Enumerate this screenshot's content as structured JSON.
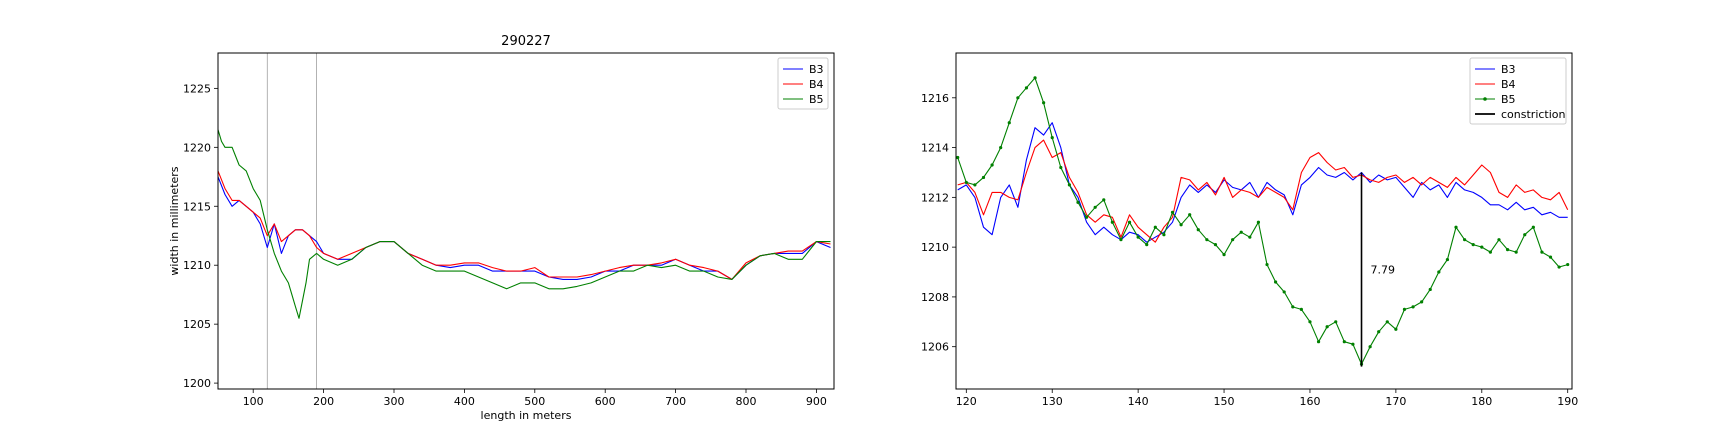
{
  "chart_data": [
    {
      "type": "line",
      "title": "290227",
      "xlabel": "length in meters",
      "ylabel": "width in millimeters",
      "xlim": [
        50,
        925
      ],
      "ylim": [
        1199.5,
        1228
      ],
      "xticks": [
        100,
        200,
        300,
        400,
        500,
        600,
        700,
        800,
        900
      ],
      "yticks": [
        1200,
        1205,
        1210,
        1215,
        1220,
        1225
      ],
      "grid": false,
      "legend_position": "top-right",
      "vlines": [
        120,
        190
      ],
      "series": [
        {
          "name": "B3",
          "color": "#0000ff",
          "x": [
            50,
            60,
            70,
            80,
            90,
            100,
            110,
            120,
            130,
            140,
            150,
            160,
            170,
            180,
            190,
            200,
            220,
            240,
            260,
            280,
            300,
            320,
            340,
            360,
            380,
            400,
            420,
            440,
            460,
            480,
            500,
            520,
            540,
            560,
            580,
            600,
            620,
            640,
            660,
            680,
            700,
            720,
            740,
            760,
            780,
            800,
            820,
            840,
            860,
            880,
            900,
            920
          ],
          "y": [
            1217.5,
            1216.0,
            1215.0,
            1215.5,
            1215.0,
            1214.5,
            1213.5,
            1211.5,
            1213.5,
            1211.0,
            1212.5,
            1213.0,
            1213.0,
            1212.5,
            1212.0,
            1211.0,
            1210.5,
            1210.5,
            1211.5,
            1212.0,
            1212.0,
            1211.0,
            1210.5,
            1210.0,
            1209.8,
            1210.0,
            1210.0,
            1209.5,
            1209.5,
            1209.5,
            1209.5,
            1209.0,
            1208.8,
            1208.8,
            1209.0,
            1209.5,
            1209.5,
            1210.0,
            1210.0,
            1210.0,
            1210.5,
            1210.0,
            1209.5,
            1209.5,
            1208.8,
            1210.0,
            1210.8,
            1211.0,
            1211.0,
            1211.0,
            1212.0,
            1211.5
          ]
        },
        {
          "name": "B4",
          "color": "#ff0000",
          "x": [
            50,
            60,
            70,
            80,
            90,
            100,
            110,
            120,
            130,
            140,
            150,
            160,
            170,
            180,
            190,
            200,
            220,
            240,
            260,
            280,
            300,
            320,
            340,
            360,
            380,
            400,
            420,
            440,
            460,
            480,
            500,
            520,
            540,
            560,
            580,
            600,
            620,
            640,
            660,
            680,
            700,
            720,
            740,
            760,
            780,
            800,
            820,
            840,
            860,
            880,
            900,
            920
          ],
          "y": [
            1218.0,
            1216.5,
            1215.5,
            1215.5,
            1215.0,
            1214.5,
            1214.0,
            1212.5,
            1213.5,
            1212.0,
            1212.5,
            1213.0,
            1213.0,
            1212.5,
            1211.5,
            1211.0,
            1210.5,
            1211.0,
            1211.5,
            1212.0,
            1212.0,
            1211.0,
            1210.5,
            1210.0,
            1210.0,
            1210.2,
            1210.2,
            1209.8,
            1209.5,
            1209.5,
            1209.8,
            1209.0,
            1209.0,
            1209.0,
            1209.2,
            1209.5,
            1209.8,
            1210.0,
            1210.0,
            1210.2,
            1210.5,
            1210.0,
            1209.8,
            1209.5,
            1208.8,
            1210.2,
            1210.8,
            1211.0,
            1211.2,
            1211.2,
            1212.0,
            1211.8
          ]
        },
        {
          "name": "B5",
          "color": "#008000",
          "x": [
            50,
            55,
            60,
            70,
            80,
            90,
            100,
            110,
            120,
            130,
            140,
            150,
            155,
            160,
            165,
            170,
            175,
            180,
            190,
            200,
            220,
            240,
            260,
            280,
            300,
            320,
            340,
            360,
            380,
            400,
            420,
            440,
            460,
            480,
            500,
            520,
            540,
            560,
            580,
            600,
            620,
            640,
            660,
            680,
            700,
            720,
            740,
            760,
            780,
            800,
            820,
            840,
            860,
            880,
            900,
            920
          ],
          "y": [
            1221.5,
            1220.5,
            1220.0,
            1220.0,
            1218.5,
            1218.0,
            1216.5,
            1215.5,
            1213.0,
            1211.0,
            1209.5,
            1208.5,
            1207.5,
            1206.5,
            1205.5,
            1207.0,
            1208.5,
            1210.5,
            1211.0,
            1210.5,
            1210.0,
            1210.5,
            1211.5,
            1212.0,
            1212.0,
            1211.0,
            1210.0,
            1209.5,
            1209.5,
            1209.5,
            1209.0,
            1208.5,
            1208.0,
            1208.5,
            1208.5,
            1208.0,
            1208.0,
            1208.2,
            1208.5,
            1209.0,
            1209.5,
            1209.5,
            1210.0,
            1209.8,
            1210.0,
            1209.5,
            1209.5,
            1209.0,
            1208.8,
            1210.0,
            1210.8,
            1211.0,
            1210.5,
            1210.5,
            1212.0,
            1212.0
          ]
        }
      ]
    },
    {
      "type": "line",
      "title": "",
      "xlabel": "",
      "ylabel": "",
      "xlim": [
        118.8,
        190.5
      ],
      "ylim": [
        1204.3,
        1217.8
      ],
      "xticks": [
        120,
        130,
        140,
        150,
        160,
        170,
        180,
        190
      ],
      "yticks": [
        1206,
        1208,
        1210,
        1212,
        1214,
        1216
      ],
      "grid": false,
      "legend_position": "top-right",
      "annotation": "7.79",
      "constriction": {
        "x": 166,
        "y1": 1205.2,
        "y2": 1213.0
      },
      "series": [
        {
          "name": "B3",
          "color": "#0000ff",
          "x": [
            119,
            120,
            121,
            122,
            123,
            124,
            125,
            126,
            127,
            128,
            129,
            130,
            131,
            132,
            133,
            134,
            135,
            136,
            137,
            138,
            139,
            140,
            141,
            142,
            143,
            144,
            145,
            146,
            147,
            148,
            149,
            150,
            151,
            152,
            153,
            154,
            155,
            156,
            157,
            158,
            159,
            160,
            161,
            162,
            163,
            164,
            165,
            166,
            167,
            168,
            169,
            170,
            171,
            172,
            173,
            174,
            175,
            176,
            177,
            178,
            179,
            180,
            181,
            182,
            183,
            184,
            185,
            186,
            187,
            188,
            189,
            190
          ],
          "y": [
            1212.3,
            1212.5,
            1212.0,
            1210.8,
            1210.5,
            1212.0,
            1212.5,
            1211.6,
            1213.5,
            1214.8,
            1214.5,
            1215.0,
            1214.0,
            1212.5,
            1212.0,
            1211.0,
            1210.5,
            1210.8,
            1210.5,
            1210.3,
            1210.6,
            1210.5,
            1210.2,
            1210.4,
            1210.6,
            1211.0,
            1212.0,
            1212.5,
            1212.2,
            1212.5,
            1212.2,
            1212.7,
            1212.4,
            1212.3,
            1212.6,
            1212.0,
            1212.6,
            1212.3,
            1212.1,
            1211.3,
            1212.5,
            1212.8,
            1213.2,
            1212.9,
            1212.8,
            1213.0,
            1212.7,
            1213.0,
            1212.6,
            1212.9,
            1212.7,
            1212.8,
            1212.4,
            1212.0,
            1212.6,
            1212.3,
            1212.5,
            1212.0,
            1212.6,
            1212.3,
            1212.2,
            1212.0,
            1211.7,
            1211.7,
            1211.5,
            1211.8,
            1211.5,
            1211.6,
            1211.3,
            1211.4,
            1211.2,
            1211.2
          ]
        },
        {
          "name": "B4",
          "color": "#ff0000",
          "x": [
            119,
            120,
            121,
            122,
            123,
            124,
            125,
            126,
            127,
            128,
            129,
            130,
            131,
            132,
            133,
            134,
            135,
            136,
            137,
            138,
            139,
            140,
            141,
            142,
            143,
            144,
            145,
            146,
            147,
            148,
            149,
            150,
            151,
            152,
            153,
            154,
            155,
            156,
            157,
            158,
            159,
            160,
            161,
            162,
            163,
            164,
            165,
            166,
            167,
            168,
            169,
            170,
            171,
            172,
            173,
            174,
            175,
            176,
            177,
            178,
            179,
            180,
            181,
            182,
            183,
            184,
            185,
            186,
            187,
            188,
            189,
            190
          ],
          "y": [
            1212.5,
            1212.6,
            1212.2,
            1211.3,
            1212.2,
            1212.2,
            1212.0,
            1211.9,
            1213.0,
            1214.0,
            1214.3,
            1213.6,
            1213.8,
            1212.8,
            1212.2,
            1211.3,
            1211.0,
            1211.3,
            1211.2,
            1210.4,
            1211.3,
            1210.8,
            1210.5,
            1210.2,
            1210.8,
            1211.2,
            1212.8,
            1212.7,
            1212.3,
            1212.6,
            1212.1,
            1212.8,
            1212.0,
            1212.3,
            1212.2,
            1212.0,
            1212.4,
            1212.2,
            1212.0,
            1211.5,
            1213.0,
            1213.6,
            1213.8,
            1213.4,
            1213.1,
            1213.2,
            1212.8,
            1212.9,
            1212.7,
            1212.6,
            1212.8,
            1212.9,
            1212.6,
            1212.8,
            1212.5,
            1212.8,
            1212.6,
            1212.4,
            1212.8,
            1212.5,
            1212.9,
            1213.3,
            1213.0,
            1212.2,
            1212.0,
            1212.5,
            1212.2,
            1212.3,
            1212.0,
            1211.9,
            1212.2,
            1211.5
          ]
        },
        {
          "name": "B5",
          "color": "#008000",
          "marker": "dot",
          "x": [
            119,
            120,
            121,
            122,
            123,
            124,
            125,
            126,
            127,
            128,
            129,
            130,
            131,
            132,
            133,
            134,
            135,
            136,
            137,
            138,
            139,
            140,
            141,
            142,
            143,
            144,
            145,
            146,
            147,
            148,
            149,
            150,
            151,
            152,
            153,
            154,
            155,
            156,
            157,
            158,
            159,
            160,
            161,
            162,
            163,
            164,
            165,
            166,
            167,
            168,
            169,
            170,
            171,
            172,
            173,
            174,
            175,
            176,
            177,
            178,
            179,
            180,
            181,
            182,
            183,
            184,
            185,
            186,
            187,
            188,
            189,
            190
          ],
          "y": [
            1213.6,
            1212.6,
            1212.5,
            1212.8,
            1213.3,
            1214.0,
            1215.0,
            1216.0,
            1216.4,
            1216.8,
            1215.8,
            1214.4,
            1213.2,
            1212.5,
            1211.8,
            1211.2,
            1211.6,
            1211.9,
            1211.0,
            1210.3,
            1211.0,
            1210.4,
            1210.1,
            1210.8,
            1210.5,
            1211.4,
            1210.9,
            1211.3,
            1210.7,
            1210.3,
            1210.1,
            1209.7,
            1210.3,
            1210.6,
            1210.4,
            1211.0,
            1209.3,
            1208.6,
            1208.2,
            1207.6,
            1207.5,
            1207.0,
            1206.2,
            1206.8,
            1207.0,
            1206.2,
            1206.1,
            1205.3,
            1206.0,
            1206.6,
            1207.0,
            1206.7,
            1207.5,
            1207.6,
            1207.8,
            1208.3,
            1209.0,
            1209.5,
            1210.8,
            1210.3,
            1210.1,
            1210.0,
            1209.8,
            1210.3,
            1209.9,
            1209.8,
            1210.5,
            1210.8,
            1209.8,
            1209.6,
            1209.2,
            1209.3
          ]
        },
        {
          "name": "constriction",
          "color": "#000000"
        }
      ]
    }
  ]
}
